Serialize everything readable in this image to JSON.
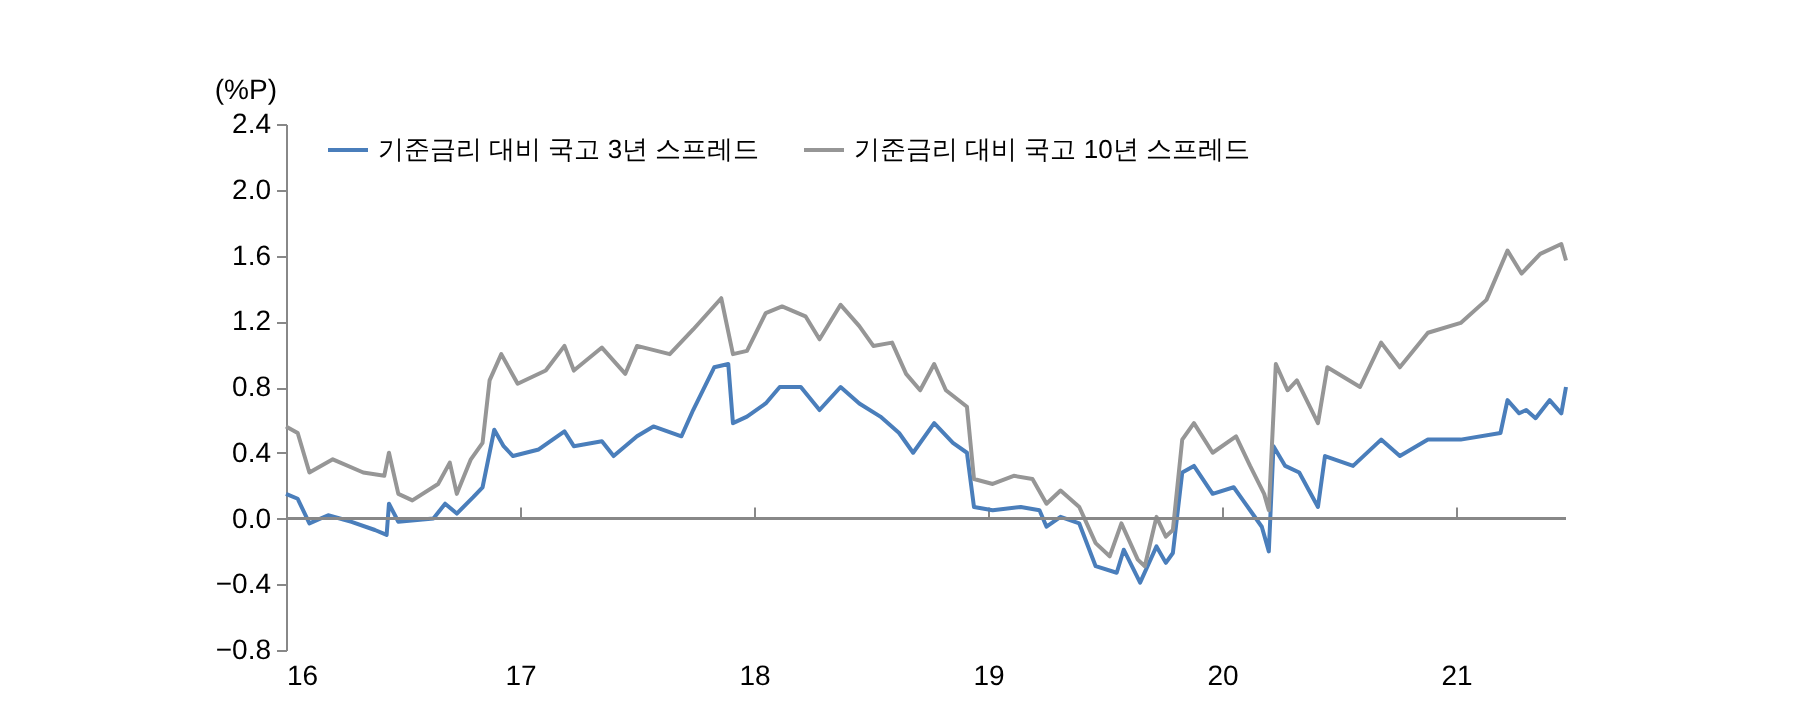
{
  "chart_data": {
    "type": "line",
    "ylabel": "(%P)",
    "xlim": [
      16,
      21.47
    ],
    "xticks": [
      16,
      17,
      18,
      19,
      20,
      21
    ],
    "ylim": [
      -0.8,
      2.4
    ],
    "yticks": [
      {
        "value": -0.8,
        "label": "−0.8"
      },
      {
        "value": -0.4,
        "label": "−0.4"
      },
      {
        "value": 0,
        "label": "0.0"
      },
      {
        "value": 0.4,
        "label": "0.4"
      },
      {
        "value": 0.8,
        "label": "0.8"
      },
      {
        "value": 1.2,
        "label": "1.2"
      },
      {
        "value": 1.6,
        "label": "1.6"
      },
      {
        "value": 2.0,
        "label": "2.0"
      },
      {
        "value": 2.4,
        "label": "2.4"
      }
    ],
    "grid": false,
    "ref_lines": [
      {
        "axis": "y",
        "value": 0,
        "color": "#888888",
        "line_style": "solid"
      }
    ],
    "legend": "top left",
    "line_style": "solid",
    "marker": "none",
    "series": [
      {
        "name": "기준금리 대비 국고 3년 스프레드",
        "color": "#4a7ebb",
        "x": [
          16.0,
          16.05,
          16.1,
          16.18,
          16.28,
          16.38,
          16.43,
          16.44,
          16.48,
          16.63,
          16.68,
          16.73,
          16.8,
          16.84,
          16.89,
          16.93,
          16.97,
          17.08,
          17.19,
          17.23,
          17.35,
          17.4,
          17.5,
          17.57,
          17.69,
          17.74,
          17.83,
          17.89,
          17.91,
          17.97,
          18.05,
          18.11,
          18.2,
          18.28,
          18.37,
          18.45,
          18.54,
          18.62,
          18.68,
          18.77,
          18.85,
          18.91,
          18.94,
          19.02,
          19.14,
          19.22,
          19.25,
          19.31,
          19.39,
          19.46,
          19.55,
          19.58,
          19.65,
          19.72,
          19.76,
          19.79,
          19.83,
          19.88,
          19.96,
          20.05,
          20.09,
          20.12,
          20.17,
          20.2,
          20.22,
          20.27,
          20.33,
          20.41,
          20.44,
          20.56,
          20.68,
          20.76,
          20.88,
          21.02,
          21.19,
          21.22,
          21.27,
          21.3,
          21.34,
          21.4,
          21.45,
          21.47
        ],
        "values": [
          0.15,
          0.12,
          -0.03,
          0.02,
          -0.02,
          -0.07,
          -0.1,
          0.09,
          -0.02,
          0.0,
          0.09,
          0.03,
          0.13,
          0.19,
          0.54,
          0.44,
          0.38,
          0.42,
          0.53,
          0.44,
          0.47,
          0.38,
          0.5,
          0.56,
          0.5,
          0.66,
          0.92,
          0.94,
          0.58,
          0.62,
          0.7,
          0.8,
          0.8,
          0.66,
          0.8,
          0.7,
          0.62,
          0.52,
          0.4,
          0.58,
          0.46,
          0.4,
          0.07,
          0.05,
          0.07,
          0.05,
          -0.05,
          0.01,
          -0.03,
          -0.29,
          -0.33,
          -0.19,
          -0.39,
          -0.17,
          -0.27,
          -0.21,
          0.28,
          0.32,
          0.15,
          0.19,
          0.11,
          0.05,
          -0.05,
          -0.2,
          0.44,
          0.32,
          0.28,
          0.07,
          0.38,
          0.32,
          0.48,
          0.38,
          0.48,
          0.48,
          0.52,
          0.72,
          0.64,
          0.66,
          0.61,
          0.72,
          0.64,
          0.8
        ]
      },
      {
        "name": "기준금리 대비 국고 10년 스프레드",
        "color": "#969696",
        "x": [
          16.0,
          16.05,
          16.1,
          16.2,
          16.33,
          16.42,
          16.44,
          16.48,
          16.54,
          16.65,
          16.7,
          16.73,
          16.79,
          16.84,
          16.87,
          16.92,
          16.99,
          17.11,
          17.19,
          17.23,
          17.35,
          17.45,
          17.5,
          17.64,
          17.74,
          17.86,
          17.91,
          17.97,
          18.05,
          18.12,
          18.22,
          18.28,
          18.37,
          18.45,
          18.51,
          18.59,
          18.65,
          18.71,
          18.77,
          18.82,
          18.91,
          18.94,
          19.02,
          19.11,
          19.19,
          19.25,
          19.31,
          19.39,
          19.46,
          19.52,
          19.57,
          19.64,
          19.67,
          19.72,
          19.76,
          19.79,
          19.83,
          19.88,
          19.96,
          20.06,
          20.12,
          20.18,
          20.2,
          20.23,
          20.28,
          20.32,
          20.41,
          20.45,
          20.59,
          20.68,
          20.76,
          20.88,
          21.02,
          21.13,
          21.22,
          21.28,
          21.36,
          21.45,
          21.47
        ],
        "values": [
          0.56,
          0.52,
          0.28,
          0.36,
          0.28,
          0.26,
          0.4,
          0.15,
          0.11,
          0.21,
          0.34,
          0.15,
          0.36,
          0.46,
          0.84,
          1.0,
          0.82,
          0.9,
          1.05,
          0.9,
          1.04,
          0.88,
          1.05,
          1.0,
          1.15,
          1.34,
          1.0,
          1.02,
          1.25,
          1.29,
          1.23,
          1.09,
          1.3,
          1.17,
          1.05,
          1.07,
          0.88,
          0.78,
          0.94,
          0.78,
          0.68,
          0.24,
          0.21,
          0.26,
          0.24,
          0.09,
          0.17,
          0.07,
          -0.15,
          -0.23,
          -0.03,
          -0.25,
          -0.29,
          0.01,
          -0.11,
          -0.07,
          0.48,
          0.58,
          0.4,
          0.5,
          0.32,
          0.15,
          0.05,
          0.94,
          0.78,
          0.84,
          0.58,
          0.92,
          0.8,
          1.07,
          0.92,
          1.13,
          1.19,
          1.33,
          1.63,
          1.49,
          1.61,
          1.67,
          1.57
        ]
      }
    ]
  }
}
